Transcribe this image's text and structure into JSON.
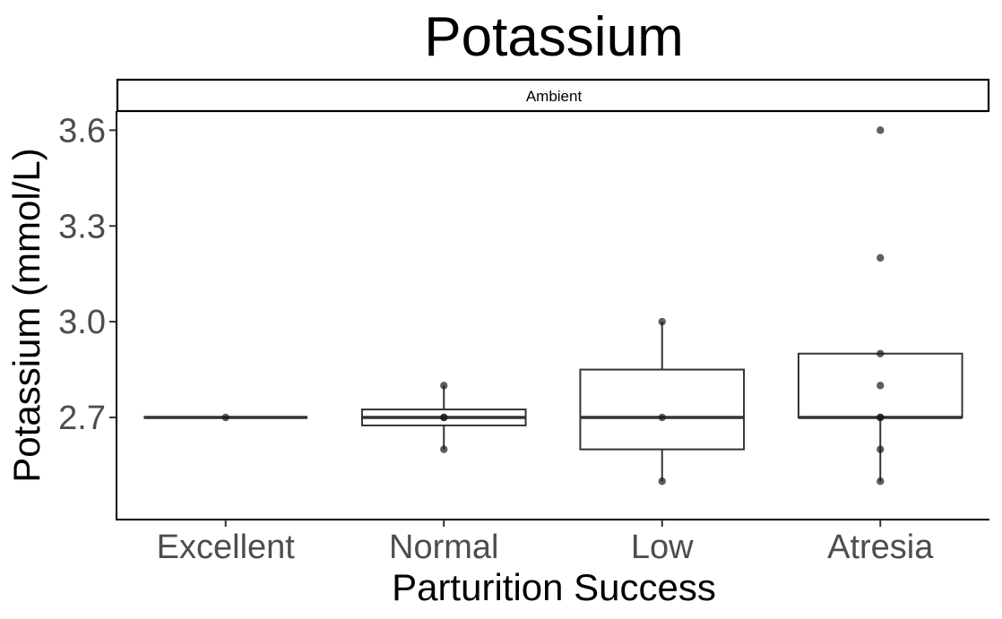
{
  "chart_data": {
    "type": "box",
    "title": "Potassium",
    "facet": "Ambient",
    "xlabel": "Parturition Success",
    "ylabel": "Potassium (mmol/L)",
    "categories": [
      "Excellent",
      "Normal",
      "Low",
      "Atresia"
    ],
    "yticks": [
      2.7,
      3.0,
      3.3,
      3.6
    ],
    "ytick_labels": [
      "2.7",
      "3.0",
      "3.3",
      "3.6"
    ],
    "ylim": [
      2.38,
      3.66
    ],
    "grid": false,
    "boxes": [
      {
        "category": "Excellent",
        "q1": 2.7,
        "median": 2.7,
        "q3": 2.7,
        "whisker_low": 2.7,
        "whisker_high": 2.7,
        "points": [
          2.7
        ]
      },
      {
        "category": "Normal",
        "q1": 2.675,
        "median": 2.7,
        "q3": 2.725,
        "whisker_low": 2.6,
        "whisker_high": 2.8,
        "points": [
          2.6,
          2.7,
          2.7,
          2.8
        ]
      },
      {
        "category": "Low",
        "q1": 2.6,
        "median": 2.7,
        "q3": 2.85,
        "whisker_low": 2.5,
        "whisker_high": 3.0,
        "points": [
          2.5,
          2.7,
          3.0
        ]
      },
      {
        "category": "Atresia",
        "q1": 2.7,
        "median": 2.7,
        "q3": 2.9,
        "whisker_low": 2.5,
        "whisker_high": 2.9,
        "points": [
          2.5,
          2.6,
          2.7,
          2.7,
          2.8,
          2.9,
          3.2,
          3.6
        ]
      }
    ],
    "colors": {
      "box_stroke": "#333333",
      "point": "#1a1a1a",
      "axis": "#000000",
      "tick_label": "#4d4d4d"
    }
  }
}
